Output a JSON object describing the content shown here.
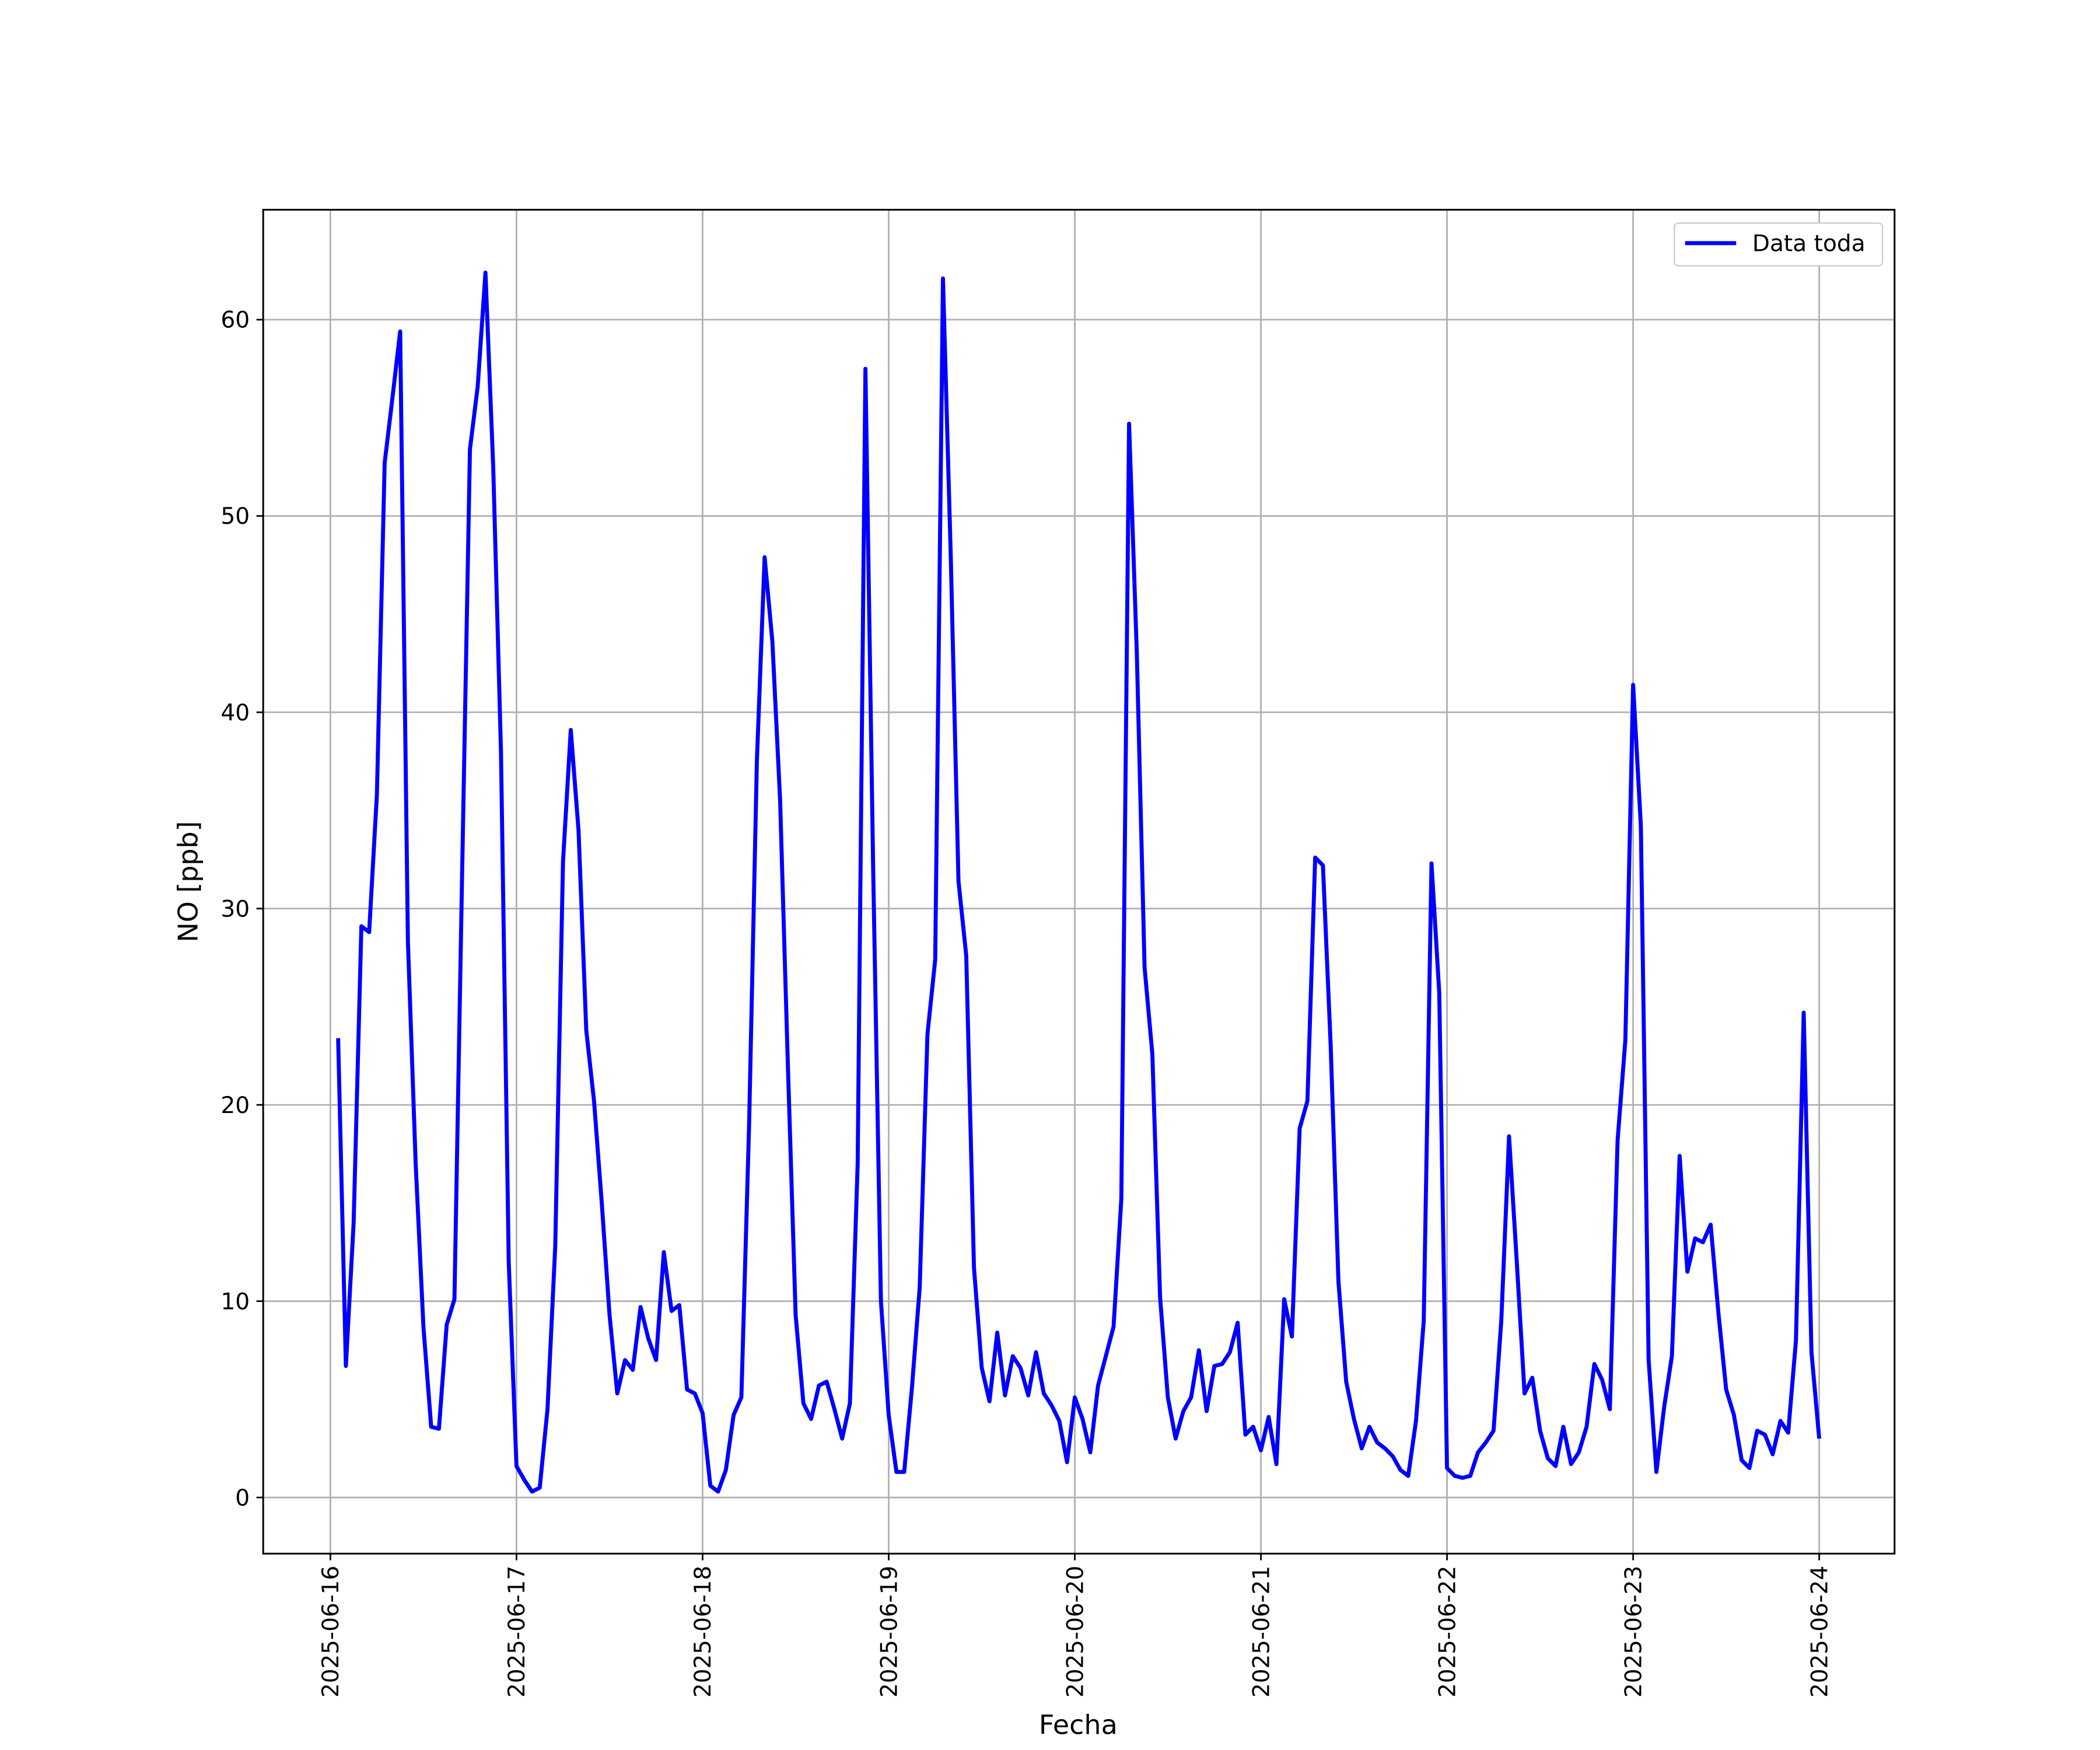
{
  "chart_data": {
    "type": "line",
    "xlabel": "Fecha",
    "ylabel": "NO [ppb]",
    "x": [
      "2025-06-16 01:00",
      "2025-06-16 02:00",
      "2025-06-16 03:00",
      "2025-06-16 04:00",
      "2025-06-16 05:00",
      "2025-06-16 06:00",
      "2025-06-16 07:00",
      "2025-06-16 08:00",
      "2025-06-16 09:00",
      "2025-06-16 10:00",
      "2025-06-16 11:00",
      "2025-06-16 12:00",
      "2025-06-16 13:00",
      "2025-06-16 14:00",
      "2025-06-16 15:00",
      "2025-06-16 16:00",
      "2025-06-16 17:00",
      "2025-06-16 18:00",
      "2025-06-16 19:00",
      "2025-06-16 20:00",
      "2025-06-16 21:00",
      "2025-06-16 22:00",
      "2025-06-16 23:00",
      "2025-06-17 00:00",
      "2025-06-17 01:00",
      "2025-06-17 02:00",
      "2025-06-17 03:00",
      "2025-06-17 04:00",
      "2025-06-17 05:00",
      "2025-06-17 06:00",
      "2025-06-17 07:00",
      "2025-06-17 08:00",
      "2025-06-17 09:00",
      "2025-06-17 10:00",
      "2025-06-17 11:00",
      "2025-06-17 12:00",
      "2025-06-17 13:00",
      "2025-06-17 14:00",
      "2025-06-17 15:00",
      "2025-06-17 16:00",
      "2025-06-17 17:00",
      "2025-06-17 18:00",
      "2025-06-17 19:00",
      "2025-06-17 20:00",
      "2025-06-17 21:00",
      "2025-06-17 22:00",
      "2025-06-17 23:00",
      "2025-06-18 00:00",
      "2025-06-18 01:00",
      "2025-06-18 02:00",
      "2025-06-18 03:00",
      "2025-06-18 04:00",
      "2025-06-18 05:00",
      "2025-06-18 06:00",
      "2025-06-18 07:00",
      "2025-06-18 08:00",
      "2025-06-18 09:00",
      "2025-06-18 10:00",
      "2025-06-18 11:00",
      "2025-06-18 12:00",
      "2025-06-18 13:00",
      "2025-06-18 14:00",
      "2025-06-18 15:00",
      "2025-06-18 16:00",
      "2025-06-18 17:00",
      "2025-06-18 18:00",
      "2025-06-18 19:00",
      "2025-06-18 20:00",
      "2025-06-18 21:00",
      "2025-06-18 22:00",
      "2025-06-18 23:00",
      "2025-06-19 00:00",
      "2025-06-19 01:00",
      "2025-06-19 02:00",
      "2025-06-19 03:00",
      "2025-06-19 04:00",
      "2025-06-19 05:00",
      "2025-06-19 06:00",
      "2025-06-19 07:00",
      "2025-06-19 08:00",
      "2025-06-19 09:00",
      "2025-06-19 10:00",
      "2025-06-19 11:00",
      "2025-06-19 12:00",
      "2025-06-19 13:00",
      "2025-06-19 14:00",
      "2025-06-19 15:00",
      "2025-06-19 16:00",
      "2025-06-19 17:00",
      "2025-06-19 18:00",
      "2025-06-19 19:00",
      "2025-06-19 20:00",
      "2025-06-19 21:00",
      "2025-06-19 22:00",
      "2025-06-19 23:00",
      "2025-06-20 00:00",
      "2025-06-20 01:00",
      "2025-06-20 02:00",
      "2025-06-20 03:00",
      "2025-06-20 04:00",
      "2025-06-20 05:00",
      "2025-06-20 06:00",
      "2025-06-20 07:00",
      "2025-06-20 08:00",
      "2025-06-20 09:00",
      "2025-06-20 10:00",
      "2025-06-20 11:00",
      "2025-06-20 12:00",
      "2025-06-20 13:00",
      "2025-06-20 14:00",
      "2025-06-20 15:00",
      "2025-06-20 16:00",
      "2025-06-20 17:00",
      "2025-06-20 18:00",
      "2025-06-20 19:00",
      "2025-06-20 20:00",
      "2025-06-20 21:00",
      "2025-06-20 22:00",
      "2025-06-20 23:00",
      "2025-06-21 00:00",
      "2025-06-21 01:00",
      "2025-06-21 02:00",
      "2025-06-21 03:00",
      "2025-06-21 04:00",
      "2025-06-21 05:00",
      "2025-06-21 06:00",
      "2025-06-21 07:00",
      "2025-06-21 08:00",
      "2025-06-21 09:00",
      "2025-06-21 10:00",
      "2025-06-21 11:00",
      "2025-06-21 12:00",
      "2025-06-21 13:00",
      "2025-06-21 14:00",
      "2025-06-21 15:00",
      "2025-06-21 16:00",
      "2025-06-21 17:00",
      "2025-06-21 18:00",
      "2025-06-21 19:00",
      "2025-06-21 20:00",
      "2025-06-21 21:00",
      "2025-06-21 22:00",
      "2025-06-21 23:00",
      "2025-06-22 00:00",
      "2025-06-22 01:00",
      "2025-06-22 02:00",
      "2025-06-22 03:00",
      "2025-06-22 04:00",
      "2025-06-22 05:00",
      "2025-06-22 06:00",
      "2025-06-22 07:00",
      "2025-06-22 08:00",
      "2025-06-22 09:00",
      "2025-06-22 10:00",
      "2025-06-22 11:00",
      "2025-06-22 12:00",
      "2025-06-22 13:00",
      "2025-06-22 14:00",
      "2025-06-22 15:00",
      "2025-06-22 16:00",
      "2025-06-22 17:00",
      "2025-06-22 18:00",
      "2025-06-22 19:00",
      "2025-06-22 20:00",
      "2025-06-22 21:00",
      "2025-06-22 22:00",
      "2025-06-22 23:00",
      "2025-06-23 00:00",
      "2025-06-23 01:00",
      "2025-06-23 02:00",
      "2025-06-23 03:00",
      "2025-06-23 04:00",
      "2025-06-23 05:00",
      "2025-06-23 06:00",
      "2025-06-23 07:00",
      "2025-06-23 08:00",
      "2025-06-23 09:00",
      "2025-06-23 10:00",
      "2025-06-23 11:00",
      "2025-06-23 12:00",
      "2025-06-23 13:00",
      "2025-06-23 14:00",
      "2025-06-23 15:00",
      "2025-06-23 16:00",
      "2025-06-23 17:00",
      "2025-06-23 18:00",
      "2025-06-23 19:00",
      "2025-06-23 20:00",
      "2025-06-23 21:00",
      "2025-06-23 22:00",
      "2025-06-23 23:00",
      "2025-06-24 00:00"
    ],
    "series": [
      {
        "name": "Data toda",
        "color": "#0000ff",
        "values": [
          23.4,
          6.7,
          14,
          29.1,
          28.8,
          35.8,
          52.7,
          56,
          59.4,
          28.3,
          17,
          8.7,
          3.6,
          3.5,
          8.8,
          10.1,
          32,
          53.4,
          56.6,
          62.4,
          52.5,
          38,
          12,
          1.6,
          0.9,
          0.3,
          0.5,
          4.5,
          12.8,
          32.4,
          39.1,
          34,
          23.8,
          20.2,
          15,
          9.3,
          5.3,
          7,
          6.5,
          9.7,
          8.1,
          7,
          12.5,
          9.5,
          9.8,
          5.5,
          5.3,
          4.3,
          0.6,
          0.3,
          1.4,
          4.2,
          5.1,
          19,
          37.5,
          47.9,
          43.6,
          35.5,
          22,
          9.3,
          4.8,
          4,
          5.7,
          5.9,
          4.5,
          3,
          4.8,
          17,
          57.5,
          32,
          10,
          4.2,
          1.3,
          1.3,
          5.6,
          10.7,
          23.6,
          27.4,
          62.1,
          48,
          31.4,
          27.6,
          11.7,
          6.6,
          4.9,
          8.4,
          5.2,
          7.2,
          6.6,
          5.2,
          7.4,
          5.3,
          4.7,
          3.9,
          1.8,
          5.1,
          4,
          2.3,
          5.7,
          7.2,
          8.7,
          15.2,
          54.7,
          43,
          27,
          22.6,
          10.2,
          5.1,
          3,
          4.4,
          5.1,
          7.5,
          4.4,
          6.7,
          6.8,
          7.4,
          8.9,
          3.2,
          3.6,
          2.4,
          4.1,
          1.7,
          10.1,
          8.2,
          18.8,
          20.2,
          32.6,
          32.2,
          23,
          11,
          5.9,
          4,
          2.5,
          3.6,
          2.8,
          2.5,
          2.1,
          1.4,
          1.1,
          3.9,
          9,
          32.3,
          25.7,
          1.5,
          1.1,
          1,
          1.1,
          2.3,
          2.8,
          3.4,
          9,
          18.4,
          12,
          5.3,
          6.1,
          3.4,
          2,
          1.6,
          3.6,
          1.7,
          2.3,
          3.6,
          6.8,
          6,
          4.5,
          18.2,
          23.3,
          41.4,
          34.2,
          7,
          1.3,
          4.6,
          7.2,
          17.4,
          11.5,
          13.2,
          13,
          13.9,
          9.4,
          5.5,
          4.2,
          1.9,
          1.5,
          3.4,
          3.2,
          2.2,
          3.9,
          3.3,
          8,
          24.7,
          7.4,
          3
        ]
      }
    ],
    "xlim": [
      "2025-06-15 15:20",
      "2025-06-24 09:43"
    ],
    "xticks": [
      "2025-06-16",
      "2025-06-17",
      "2025-06-18",
      "2025-06-19",
      "2025-06-20",
      "2025-06-21",
      "2025-06-22",
      "2025-06-23",
      "2025-06-24"
    ],
    "ylim": [
      -2.86,
      65.6
    ],
    "yticks": [
      0,
      10,
      20,
      30,
      40,
      50,
      60
    ],
    "grid": true,
    "legend": "upper right"
  }
}
